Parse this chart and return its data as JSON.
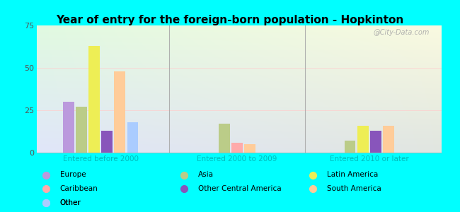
{
  "title": "Year of entry for the foreign-born population - Hopkinton",
  "groups": [
    "Entered before 2000",
    "Entered 2000 to 2009",
    "Entered 2010 or later"
  ],
  "bar_order": [
    "Europe",
    "Asia",
    "Latin America",
    "Other Central America",
    "South America",
    "Other"
  ],
  "colors": {
    "Europe": "#bb99dd",
    "Asia": "#bbcc88",
    "Latin America": "#eeee55",
    "Caribbean": "#ffaaaa",
    "Other Central America": "#8855bb",
    "South America": "#ffcc99",
    "Other": "#aaccff"
  },
  "values": {
    "Entered before 2000": {
      "Europe": 30,
      "Asia": 27,
      "Latin America": 63,
      "Caribbean": 0,
      "Other Central America": 13,
      "South America": 48,
      "Other": 18
    },
    "Entered 2000 to 2009": {
      "Europe": 0,
      "Asia": 17,
      "Latin America": 0,
      "Caribbean": 6,
      "Other Central America": 0,
      "South America": 5,
      "Other": 0
    },
    "Entered 2010 or later": {
      "Europe": 0,
      "Asia": 7,
      "Latin America": 16,
      "Caribbean": 0,
      "Other Central America": 13,
      "South America": 16,
      "Other": 0
    }
  },
  "ylim": [
    0,
    75
  ],
  "yticks": [
    0,
    25,
    50,
    75
  ],
  "background_color": "#00ffff",
  "watermark": "@City-Data.com",
  "legend_items": [
    [
      "Europe",
      "#bb99dd"
    ],
    [
      "Asia",
      "#bbcc88"
    ],
    [
      "Latin America",
      "#eeee55"
    ],
    [
      "Caribbean",
      "#ffaaaa"
    ],
    [
      "Other Central America",
      "#8855bb"
    ],
    [
      "South America",
      "#ffcc99"
    ],
    [
      "Other",
      "#aaccff"
    ]
  ]
}
